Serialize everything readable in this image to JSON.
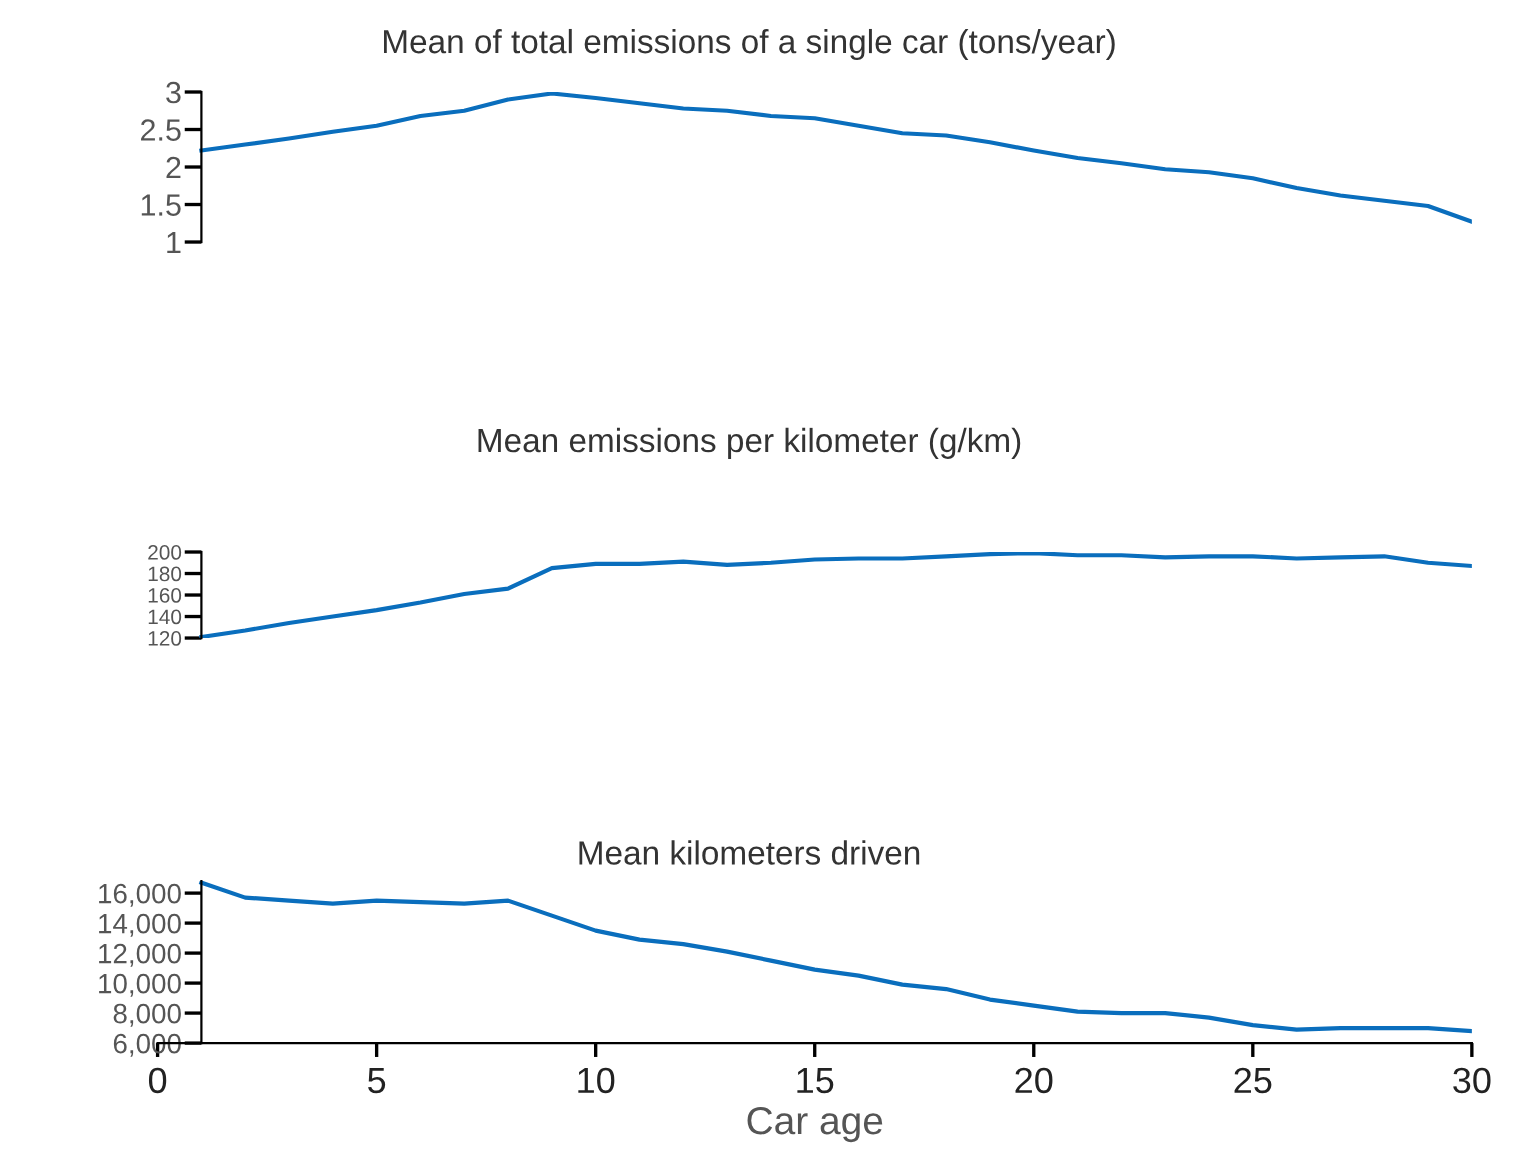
{
  "chart_data": [
    {
      "type": "line",
      "title": "Mean of total emissions of a single car (tons/year)",
      "x": [
        1,
        2,
        3,
        4,
        5,
        6,
        7,
        8,
        9,
        10,
        11,
        12,
        13,
        14,
        15,
        16,
        17,
        18,
        19,
        20,
        21,
        22,
        23,
        24,
        25,
        26,
        27,
        28,
        29,
        30
      ],
      "series": [
        {
          "color": "#0a6ebd",
          "values": [
            2.22,
            2.3,
            2.38,
            2.47,
            2.55,
            2.68,
            2.75,
            2.9,
            2.98,
            2.92,
            2.85,
            2.78,
            2.75,
            2.68,
            2.65,
            2.55,
            2.45,
            2.42,
            2.33,
            2.22,
            2.12,
            2.05,
            1.97,
            1.93,
            1.85,
            1.72,
            1.62,
            1.55,
            1.48,
            1.27
          ]
        }
      ],
      "xlim": [
        0,
        30
      ],
      "ylim": [
        1,
        3
      ],
      "yticks": [
        1,
        1.5,
        2,
        2.5,
        3
      ],
      "tick_labels": "y",
      "grid": false,
      "legend": false
    },
    {
      "type": "line",
      "title": "Mean emissions per kilometer (g/km)",
      "x": [
        1,
        2,
        3,
        4,
        5,
        6,
        7,
        8,
        9,
        10,
        11,
        12,
        13,
        14,
        15,
        16,
        17,
        18,
        19,
        20,
        21,
        22,
        23,
        24,
        25,
        26,
        27,
        28,
        29,
        30
      ],
      "series": [
        {
          "color": "#0a6ebd",
          "values": [
            121,
            127,
            134,
            140,
            146,
            153,
            161,
            166,
            185,
            189,
            189,
            191,
            188,
            190,
            193,
            194,
            194,
            196,
            198,
            199,
            197,
            197,
            195,
            196,
            196,
            194,
            195,
            196,
            190,
            187
          ]
        }
      ],
      "xlim": [
        0,
        30
      ],
      "ylim": [
        120,
        200
      ],
      "yticks": [
        120,
        140,
        160,
        180,
        200
      ],
      "tick_labels": "y",
      "grid": false,
      "legend": false
    },
    {
      "type": "line",
      "title": "Mean kilometers driven",
      "xlabel": "Car age",
      "x": [
        1,
        2,
        3,
        4,
        5,
        6,
        7,
        8,
        9,
        10,
        11,
        12,
        13,
        14,
        15,
        16,
        17,
        18,
        19,
        20,
        21,
        22,
        23,
        24,
        25,
        26,
        27,
        28,
        29,
        30
      ],
      "series": [
        {
          "color": "#0a6ebd",
          "values": [
            16700,
            15700,
            15500,
            15300,
            15500,
            15400,
            15300,
            15500,
            14500,
            13500,
            12900,
            12600,
            12100,
            11500,
            10900,
            10500,
            9900,
            9600,
            8900,
            8500,
            8100,
            8000,
            8000,
            7700,
            7200,
            6900,
            7000,
            7000,
            7000,
            6800
          ]
        }
      ],
      "xlim": [
        0,
        30
      ],
      "xticks": [
        0,
        5,
        10,
        15,
        20,
        25,
        30
      ],
      "ylim": [
        6000,
        16800
      ],
      "yticks": [
        {
          "value": 6000,
          "label": "6,000"
        },
        {
          "value": 8000,
          "label": "8,000"
        },
        {
          "value": 10000,
          "label": "10,000"
        },
        {
          "value": 12000,
          "label": "12,000"
        },
        {
          "value": 14000,
          "label": "14,000"
        },
        {
          "value": 16000,
          "label": "16,000"
        }
      ],
      "grid": false,
      "legend": false
    }
  ]
}
